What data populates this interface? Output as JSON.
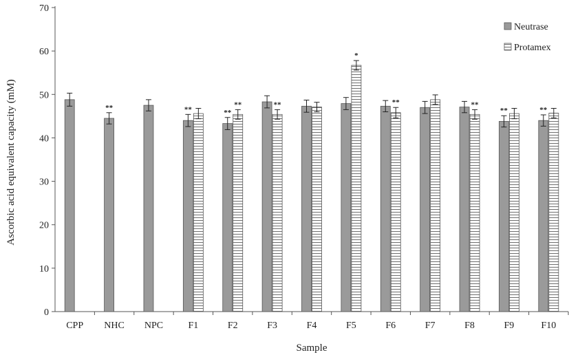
{
  "chart_data": {
    "type": "bar",
    "title": "",
    "xlabel": "Sample",
    "ylabel": "Ascorbic acid equivalent capacity (mM)",
    "ylim": [
      0,
      70
    ],
    "yticks": [
      0,
      10,
      20,
      30,
      40,
      50,
      60,
      70
    ],
    "grid": false,
    "legend_position": "top-right",
    "categories": [
      "CPP",
      "NHC",
      "NPC",
      "F1",
      "F2",
      "F3",
      "F4",
      "F5",
      "F6",
      "F7",
      "F8",
      "F9",
      "F10"
    ],
    "series": [
      {
        "name": "Neutrase",
        "pattern": "solid-gray",
        "color": "#9a9a9a",
        "values": [
          48.8,
          44.5,
          47.5,
          44.0,
          43.3,
          48.3,
          47.3,
          47.9,
          47.3,
          47.0,
          47.1,
          43.8,
          44.0
        ],
        "errors": [
          1.5,
          1.3,
          1.3,
          1.4,
          1.4,
          1.4,
          1.4,
          1.4,
          1.3,
          1.4,
          1.3,
          1.3,
          1.3
        ],
        "annotations": [
          "",
          "**",
          "",
          "**",
          "**",
          "",
          "",
          "",
          "",
          "",
          "",
          "**",
          "**"
        ]
      },
      {
        "name": "Protamex",
        "pattern": "horizontal-stripes",
        "color": "#7a7a7a",
        "values": [
          null,
          null,
          null,
          45.6,
          45.4,
          45.4,
          47.1,
          56.7,
          45.8,
          48.8,
          45.4,
          45.6,
          45.7
        ],
        "errors": [
          null,
          null,
          null,
          1.2,
          1.1,
          1.1,
          1.1,
          1.1,
          1.2,
          1.1,
          1.1,
          1.2,
          1.1
        ],
        "annotations": [
          "",
          "",
          "",
          "",
          "**",
          "**",
          "",
          "*",
          "**",
          "",
          "**",
          "",
          ""
        ]
      }
    ]
  }
}
